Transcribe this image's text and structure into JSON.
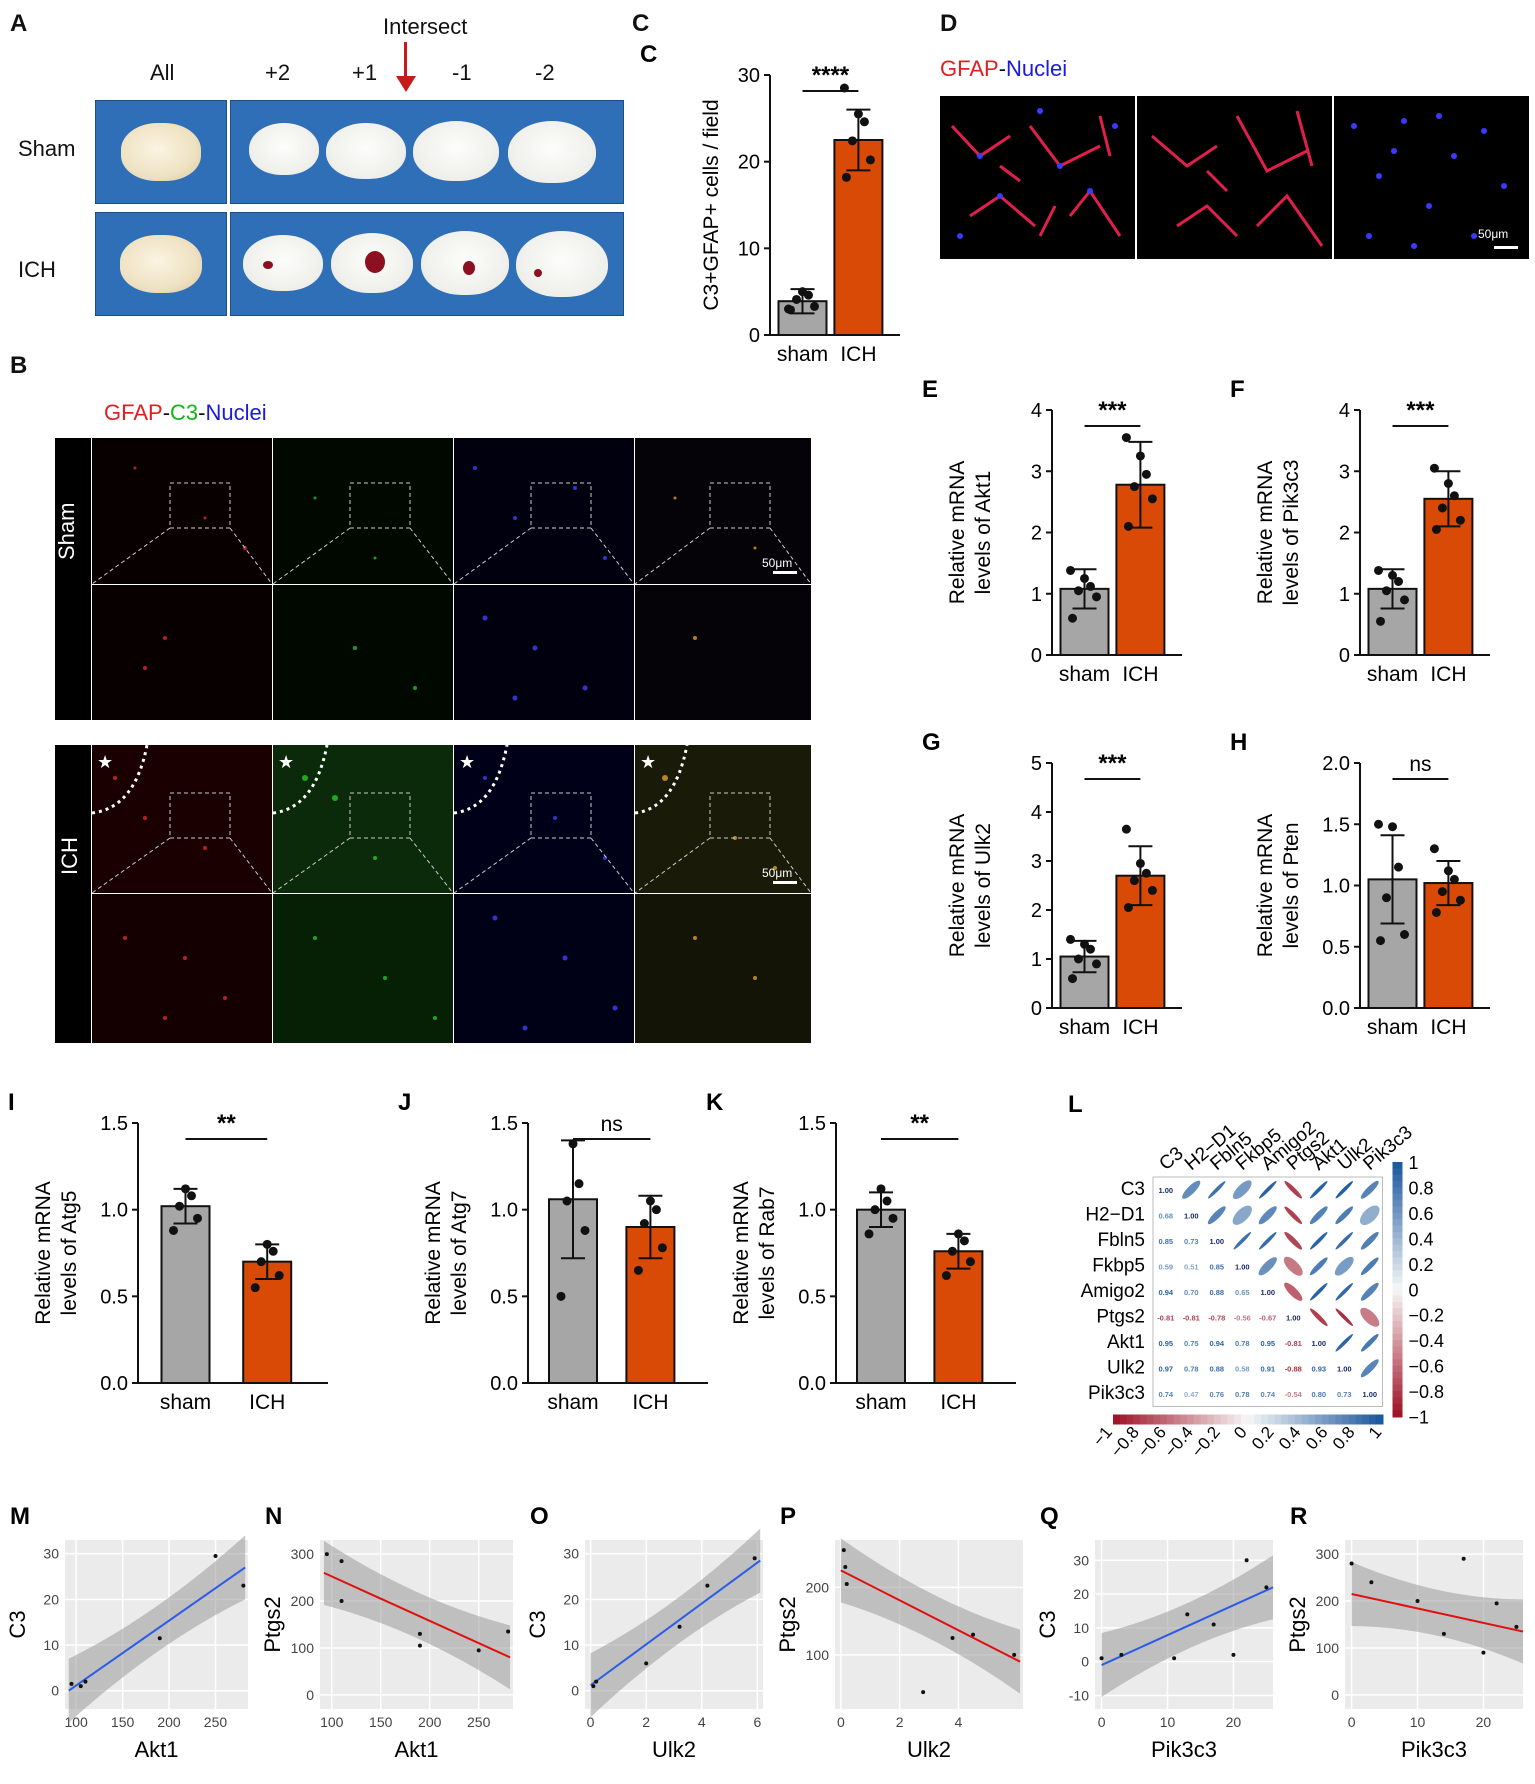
{
  "panel_letters": {
    "A": "A",
    "B": "B",
    "C": "C",
    "D": "D",
    "E": "E",
    "F": "F",
    "G": "G",
    "H": "H",
    "I": "I",
    "J": "J",
    "K": "K",
    "L": "L",
    "M": "M",
    "N": "N",
    "O": "O",
    "P": "P",
    "Q": "Q",
    "R": "R"
  },
  "panelA": {
    "intersect": "Intersect",
    "cols": [
      "All",
      "+2",
      "+1",
      "-1",
      "-2"
    ],
    "rows": [
      "Sham",
      "ICH"
    ]
  },
  "panelB": {
    "legend": [
      {
        "text": "GFAP",
        "color": "#e02020"
      },
      {
        "text": "-",
        "color": "#111111"
      },
      {
        "text": "C3",
        "color": "#16b516"
      },
      {
        "text": "-",
        "color": "#111111"
      },
      {
        "text": "Nuclei",
        "color": "#1a1ae0"
      }
    ],
    "rows": [
      "Sham",
      "ICH"
    ],
    "scale": "50μm"
  },
  "panelD": {
    "legend": [
      {
        "text": "GFAP",
        "color": "#e02020"
      },
      {
        "text": "-",
        "color": "#111111"
      },
      {
        "text": "Nuclei",
        "color": "#1a1ae0"
      }
    ],
    "scale": "50μm"
  },
  "colors": {
    "sham": "#a6a6a6",
    "ich": "#d84a06"
  },
  "bars": [
    {
      "key": "C",
      "ylabel": [
        "C3+GFAP+ cells / field"
      ],
      "yticks": [
        "0",
        "10",
        "20",
        "30"
      ],
      "ymax": 30,
      "values": [
        3.9,
        22.5
      ],
      "err": [
        1.4,
        3.5
      ],
      "sig": "****",
      "categories": [
        "sham",
        "ICH"
      ],
      "points": [
        [
          2.9,
          3.3,
          4.1,
          4.6,
          5.0,
          3.0
        ],
        [
          18.2,
          20.2,
          22.4,
          24.6,
          25.5,
          28.5
        ]
      ]
    },
    {
      "key": "E",
      "ylabel": [
        "Relative mRNA",
        "levels of Akt1"
      ],
      "yticks": [
        "0",
        "1",
        "2",
        "3",
        "4"
      ],
      "ymax": 4,
      "values": [
        1.08,
        2.78
      ],
      "err": [
        0.32,
        0.7
      ],
      "sig": "***",
      "categories": [
        "sham",
        "ICH"
      ],
      "points": [
        [
          0.6,
          0.95,
          1.05,
          1.12,
          1.25,
          1.38
        ],
        [
          2.1,
          2.55,
          2.75,
          2.95,
          3.25,
          3.55
        ]
      ]
    },
    {
      "key": "F",
      "ylabel": [
        "Relative mRNA",
        "levels of Pik3c3"
      ],
      "yticks": [
        "0",
        "1",
        "2",
        "3",
        "4"
      ],
      "ymax": 4,
      "values": [
        1.08,
        2.55
      ],
      "err": [
        0.32,
        0.45
      ],
      "sig": "***",
      "categories": [
        "sham",
        "ICH"
      ],
      "points": [
        [
          0.55,
          0.9,
          1.05,
          1.2,
          1.3,
          1.38
        ],
        [
          2.05,
          2.2,
          2.4,
          2.6,
          2.8,
          3.05
        ]
      ]
    },
    {
      "key": "G",
      "ylabel": [
        "Relative mRNA",
        "levels of Ulk2"
      ],
      "yticks": [
        "0",
        "1",
        "2",
        "3",
        "4",
        "5"
      ],
      "ymax": 5,
      "values": [
        1.05,
        2.7
      ],
      "err": [
        0.32,
        0.6
      ],
      "sig": "***",
      "categories": [
        "sham",
        "ICH"
      ],
      "points": [
        [
          0.6,
          0.9,
          1.0,
          1.2,
          1.3,
          1.4
        ],
        [
          2.05,
          2.4,
          2.6,
          2.75,
          2.95,
          3.65
        ]
      ]
    },
    {
      "key": "H",
      "ylabel": [
        "Relative mRNA",
        "levels of Pten"
      ],
      "yticks": [
        "0.0",
        "0.5",
        "1.0",
        "1.5",
        "2.0"
      ],
      "ymax": 2,
      "values": [
        1.05,
        1.02
      ],
      "err": [
        0.36,
        0.18
      ],
      "sig": "ns",
      "categories": [
        "sham",
        "ICH"
      ],
      "points": [
        [
          0.55,
          0.6,
          0.9,
          1.15,
          1.48,
          1.5
        ],
        [
          0.78,
          0.88,
          0.95,
          1.05,
          1.12,
          1.3
        ]
      ]
    },
    {
      "key": "I",
      "ylabel": [
        "Relative mRNA",
        "levels of Atg5"
      ],
      "yticks": [
        "0.0",
        "0.5",
        "1.0",
        "1.5"
      ],
      "ymax": 1.5,
      "values": [
        1.02,
        0.7
      ],
      "err": [
        0.1,
        0.1
      ],
      "sig": "**",
      "categories": [
        "sham",
        "ICH"
      ],
      "points": [
        [
          0.88,
          0.95,
          1.02,
          1.08,
          1.12
        ],
        [
          0.55,
          0.62,
          0.7,
          0.76,
          0.8
        ]
      ]
    },
    {
      "key": "J",
      "ylabel": [
        "Relative mRNA",
        "levels of Atg7"
      ],
      "yticks": [
        "0.0",
        "0.5",
        "1.0",
        "1.5"
      ],
      "ymax": 1.5,
      "values": [
        1.06,
        0.9
      ],
      "err": [
        0.34,
        0.18
      ],
      "sig": "ns",
      "categories": [
        "sham",
        "ICH"
      ],
      "points": [
        [
          0.5,
          0.88,
          1.05,
          1.15,
          1.38
        ],
        [
          0.65,
          0.78,
          0.92,
          1.0,
          1.05
        ]
      ]
    },
    {
      "key": "K",
      "ylabel": [
        "Relative mRNA",
        "levels of Rab7"
      ],
      "yticks": [
        "0.0",
        "0.5",
        "1.0",
        "1.5"
      ],
      "ymax": 1.5,
      "values": [
        1.0,
        0.76
      ],
      "err": [
        0.1,
        0.1
      ],
      "sig": "**",
      "categories": [
        "sham",
        "ICH"
      ],
      "points": [
        [
          0.86,
          0.95,
          1.0,
          1.05,
          1.12
        ],
        [
          0.62,
          0.7,
          0.76,
          0.82,
          0.86
        ]
      ]
    }
  ],
  "panelL": {
    "genes": [
      "C3",
      "H2−D1",
      "Fbln5",
      "Fkbp5",
      "Amigo2",
      "Ptgs2",
      "Akt1",
      "Ulk2",
      "Pik3c3"
    ],
    "matrix": [
      [
        1.0,
        0.68,
        0.85,
        0.59,
        0.94,
        -0.81,
        0.95,
        0.97,
        0.74
      ],
      [
        0.68,
        1.0,
        0.73,
        0.51,
        0.7,
        -0.81,
        0.75,
        0.78,
        0.47
      ],
      [
        0.85,
        0.73,
        1.0,
        0.85,
        0.88,
        -0.78,
        0.94,
        0.88,
        0.76
      ],
      [
        0.59,
        0.51,
        0.85,
        1.0,
        0.65,
        -0.56,
        0.78,
        0.58,
        0.78
      ],
      [
        0.94,
        0.7,
        0.88,
        0.65,
        1.0,
        -0.67,
        0.95,
        0.91,
        0.74
      ],
      [
        -0.81,
        -0.81,
        -0.78,
        -0.56,
        -0.67,
        1.0,
        -0.81,
        -0.88,
        -0.54
      ],
      [
        0.95,
        0.75,
        0.94,
        0.78,
        0.95,
        -0.81,
        1.0,
        0.93,
        0.8
      ],
      [
        0.97,
        0.78,
        0.88,
        0.58,
        0.91,
        -0.88,
        0.93,
        1.0,
        0.73
      ],
      [
        0.74,
        0.47,
        0.76,
        0.78,
        0.74,
        -0.54,
        0.8,
        0.73,
        1.0
      ]
    ],
    "right_ticks": [
      "1",
      "0.8",
      "0.6",
      "0.4",
      "0.2",
      "0",
      "−0.2",
      "−0.4",
      "−0.6",
      "−0.8",
      "−1"
    ],
    "bottom_ticks": [
      "−1",
      "−0.8",
      "−0.6",
      "−0.4",
      "−0.2",
      "0",
      "0.2",
      "0.4",
      "0.6",
      "0.8",
      "1"
    ]
  },
  "scatters": [
    {
      "key": "M",
      "x_label": "Akt1",
      "y_label": "C3",
      "xticks": [
        100,
        150,
        200,
        250
      ],
      "yticks": [
        0,
        10,
        20,
        30
      ],
      "xlim": [
        88,
        285
      ],
      "ylim": [
        -4,
        33
      ],
      "line_color": "#2b5ce6",
      "points": [
        [
          95,
          1.5
        ],
        [
          105,
          1
        ],
        [
          110,
          2
        ],
        [
          190,
          11.5
        ],
        [
          250,
          29.5
        ],
        [
          280,
          23
        ]
      ],
      "fit": [
        [
          92,
          0
        ],
        [
          282,
          27
        ]
      ]
    },
    {
      "key": "N",
      "x_label": "Akt1",
      "y_label": "Ptgs2",
      "xticks": [
        100,
        150,
        200,
        250
      ],
      "yticks": [
        0,
        100,
        200,
        300
      ],
      "xlim": [
        88,
        285
      ],
      "ylim": [
        -30,
        330
      ],
      "line_color": "#e01010",
      "points": [
        [
          95,
          300
        ],
        [
          110,
          285
        ],
        [
          110,
          200
        ],
        [
          190,
          130
        ],
        [
          190,
          105
        ],
        [
          250,
          95
        ],
        [
          280,
          135
        ]
      ],
      "fit": [
        [
          92,
          260
        ],
        [
          282,
          80
        ]
      ]
    },
    {
      "key": "O",
      "x_label": "Ulk2",
      "y_label": "C3",
      "xticks": [
        0,
        2,
        4,
        6
      ],
      "yticks": [
        0,
        10,
        20,
        30
      ],
      "xlim": [
        -0.2,
        6.2
      ],
      "ylim": [
        -4,
        33
      ],
      "line_color": "#2b5ce6",
      "points": [
        [
          0.1,
          1
        ],
        [
          0.2,
          2
        ],
        [
          2.0,
          6
        ],
        [
          3.2,
          14
        ],
        [
          4.2,
          23
        ],
        [
          5.9,
          29
        ]
      ],
      "fit": [
        [
          0,
          1.2
        ],
        [
          6.1,
          28.5
        ]
      ]
    },
    {
      "key": "P",
      "x_label": "Ulk2",
      "y_label": "Ptgs2",
      "xticks": [
        0,
        2,
        4
      ],
      "yticks": [
        100,
        200
      ],
      "xlim": [
        -0.2,
        6.2
      ],
      "ylim": [
        20,
        270
      ],
      "line_color": "#e01010",
      "points": [
        [
          0.1,
          255
        ],
        [
          0.15,
          230
        ],
        [
          0.2,
          205
        ],
        [
          3.8,
          125
        ],
        [
          4.5,
          130
        ],
        [
          5.9,
          100
        ],
        [
          2.8,
          45
        ]
      ],
      "fit": [
        [
          0,
          225
        ],
        [
          6.1,
          90
        ]
      ]
    },
    {
      "key": "Q",
      "x_label": "Pik3c3",
      "y_label": "C3",
      "xticks": [
        0,
        10,
        20
      ],
      "yticks": [
        -10,
        0,
        10,
        20,
        30
      ],
      "xlim": [
        -1,
        26
      ],
      "ylim": [
        -14,
        36
      ],
      "line_color": "#2b5ce6",
      "points": [
        [
          0,
          1
        ],
        [
          3,
          2
        ],
        [
          11,
          1
        ],
        [
          13,
          14
        ],
        [
          17,
          11
        ],
        [
          20,
          2
        ],
        [
          22,
          30
        ],
        [
          25,
          22
        ]
      ],
      "fit": [
        [
          0,
          -1
        ],
        [
          26,
          22
        ]
      ]
    },
    {
      "key": "R",
      "x_label": "Pik3c3",
      "y_label": "Ptgs2",
      "xticks": [
        0,
        10,
        20
      ],
      "yticks": [
        0,
        100,
        200,
        300
      ],
      "xlim": [
        -1,
        26
      ],
      "ylim": [
        -30,
        330
      ],
      "line_color": "#e01010",
      "points": [
        [
          0,
          280
        ],
        [
          3,
          240
        ],
        [
          10,
          200
        ],
        [
          14,
          130
        ],
        [
          17,
          290
        ],
        [
          20,
          90
        ],
        [
          22,
          195
        ],
        [
          25,
          145
        ]
      ],
      "fit": [
        [
          0,
          215
        ],
        [
          26,
          135
        ]
      ]
    }
  ],
  "chart_data": [
    {
      "type": "bar",
      "panel": "C",
      "categories": [
        "sham",
        "ICH"
      ],
      "values": [
        3.9,
        22.5
      ],
      "ylabel": "C3+GFAP+ cells / field",
      "ylim": [
        0,
        30
      ]
    },
    {
      "type": "bar",
      "panel": "E",
      "categories": [
        "sham",
        "ICH"
      ],
      "values": [
        1.08,
        2.78
      ],
      "ylabel": "Relative mRNA levels of Akt1",
      "ylim": [
        0,
        4
      ]
    },
    {
      "type": "bar",
      "panel": "F",
      "categories": [
        "sham",
        "ICH"
      ],
      "values": [
        1.08,
        2.55
      ],
      "ylabel": "Relative mRNA levels of Pik3c3",
      "ylim": [
        0,
        4
      ]
    },
    {
      "type": "bar",
      "panel": "G",
      "categories": [
        "sham",
        "ICH"
      ],
      "values": [
        1.05,
        2.7
      ],
      "ylabel": "Relative mRNA levels of Ulk2",
      "ylim": [
        0,
        5
      ]
    },
    {
      "type": "bar",
      "panel": "H",
      "categories": [
        "sham",
        "ICH"
      ],
      "values": [
        1.05,
        1.02
      ],
      "ylabel": "Relative mRNA levels of Pten",
      "ylim": [
        0,
        2
      ]
    },
    {
      "type": "bar",
      "panel": "I",
      "categories": [
        "sham",
        "ICH"
      ],
      "values": [
        1.02,
        0.7
      ],
      "ylabel": "Relative mRNA levels of Atg5",
      "ylim": [
        0,
        1.5
      ]
    },
    {
      "type": "bar",
      "panel": "J",
      "categories": [
        "sham",
        "ICH"
      ],
      "values": [
        1.06,
        0.9
      ],
      "ylabel": "Relative mRNA levels of Atg7",
      "ylim": [
        0,
        1.5
      ]
    },
    {
      "type": "bar",
      "panel": "K",
      "categories": [
        "sham",
        "ICH"
      ],
      "values": [
        1.0,
        0.76
      ],
      "ylabel": "Relative mRNA levels of Rab7",
      "ylim": [
        0,
        1.5
      ]
    },
    {
      "type": "heatmap",
      "panel": "L"
    },
    {
      "type": "scatter",
      "panel": "M",
      "xlabel": "Akt1",
      "ylabel": "C3"
    },
    {
      "type": "scatter",
      "panel": "N",
      "xlabel": "Akt1",
      "ylabel": "Ptgs2"
    },
    {
      "type": "scatter",
      "panel": "O",
      "xlabel": "Ulk2",
      "ylabel": "C3"
    },
    {
      "type": "scatter",
      "panel": "P",
      "xlabel": "Ulk2",
      "ylabel": "Ptgs2"
    },
    {
      "type": "scatter",
      "panel": "Q",
      "xlabel": "Pik3c3",
      "ylabel": "C3"
    },
    {
      "type": "scatter",
      "panel": "R",
      "xlabel": "Pik3c3",
      "ylabel": "Ptgs2"
    }
  ]
}
